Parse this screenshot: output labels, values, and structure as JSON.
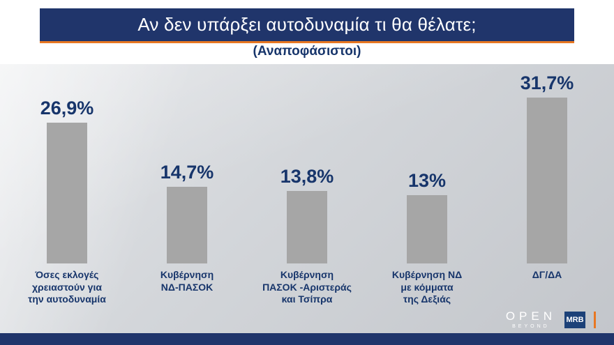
{
  "header": {
    "title": "Αν δεν υπάρξει αυτοδυναμία τι θα θέλατε;",
    "subtitle": "(Αναποφάσιστοι)"
  },
  "chart_data": {
    "type": "bar",
    "title": "Αν δεν υπάρξει αυτοδυναμία τι θα θέλατε;",
    "subtitle": "(Αναποφάσιστοι)",
    "categories": [
      "Όσες εκλογές\nχρειαστούν για\nτην αυτοδυναμία",
      "Κυβέρνηση\nΝΔ-ΠΑΣΟΚ",
      "Κυβέρνηση\nΠΑΣΟΚ -Αριστεράς\nκαι Τσίπρα",
      "Κυβέρνηση ΝΔ\nμε κόμματα\nτης Δεξιάς",
      "ΔΓ/ΔΑ"
    ],
    "values": [
      26.9,
      14.7,
      13.8,
      13,
      31.7
    ],
    "value_labels": [
      "26,9%",
      "14,7%",
      "13,8%",
      "13%",
      "31,7%"
    ],
    "xlabel": "",
    "ylabel": "",
    "ylim": [
      0,
      35
    ],
    "grid": false,
    "legend": false,
    "bar_color": "#a6a6a6",
    "value_label_color": "#17356b"
  },
  "footer": {
    "open_logo": "OPEN",
    "open_logo_sub": "BEYOND",
    "mrb_logo": "MRB"
  },
  "colors": {
    "banner_navy": "#20356b",
    "accent_orange": "#e87722",
    "text_blue": "#17356b",
    "bar_gray": "#a6a6a6",
    "background_gray": "#d2d5d9"
  }
}
